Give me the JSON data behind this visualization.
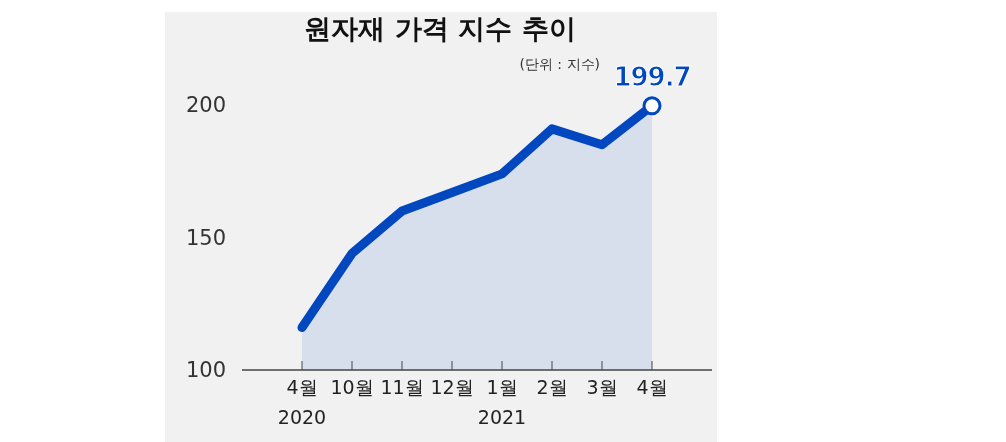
{
  "chart_data": {
    "type": "area",
    "title": "원자재 가격 지수 추이",
    "subtitle": "(단위 : 지수)",
    "categories": [
      "4월",
      "10월",
      "11월",
      "12월",
      "1월",
      "2월",
      "3월",
      "4월"
    ],
    "series": [
      {
        "color": "#0047c0",
        "values": [
          116,
          144,
          160,
          167,
          174,
          191,
          185,
          199.7
        ],
        "value_labels": [
          null,
          null,
          null,
          null,
          null,
          null,
          null,
          "199.7"
        ]
      }
    ],
    "annotations": [
      "2020",
      "2021"
    ],
    "ylim": [
      100,
      200
    ],
    "yticks": [
      100,
      150,
      200
    ],
    "grid": false
  }
}
